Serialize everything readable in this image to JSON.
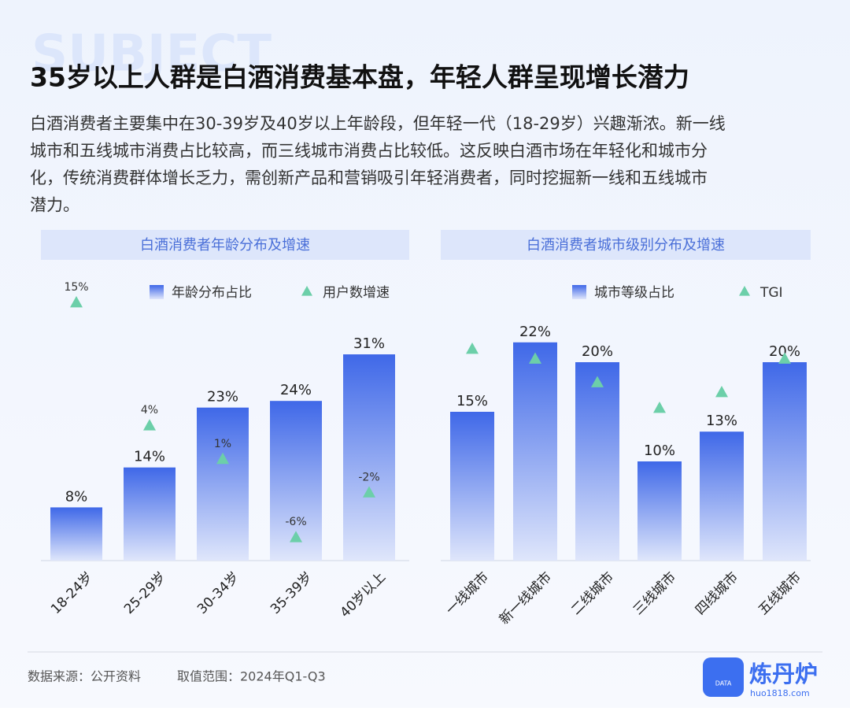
{
  "watermark": "SUBJECT",
  "title": "35岁以上人群是白酒消费基本盘，年轻人群呈现增长潜力",
  "description": [
    "白酒消费者主要集中在30-39岁及40岁以上年龄段，但年轻一代（18-29岁）兴趣渐浓。新一线",
    "城市和五线城市消费占比较高，而三线城市消费占比较低。这反映白酒市场在年轻化和城市分",
    "化，传统消费群体增长乏力，需创新产品和营销吸引年轻消费者，同时挖掘新一线和五线城市",
    "潜力。"
  ],
  "chart_data": [
    {
      "type": "bar",
      "title": "白酒消费者年龄分布及增速",
      "categories": [
        "18-24岁",
        "25-29岁",
        "30-34岁",
        "35-39岁",
        "40岁以上"
      ],
      "series": [
        {
          "name": "年龄分布占比",
          "color": "#3f68e8",
          "values": [
            8,
            14,
            23,
            24,
            31
          ],
          "value_labels": [
            "8%",
            "14%",
            "23%",
            "24%",
            "31%"
          ]
        },
        {
          "name": "用户数增速",
          "type": "marker",
          "color": "#6ccfa9",
          "values": [
            15,
            4,
            1,
            -6,
            -2
          ],
          "value_labels": [
            "15%",
            "4%",
            "1%",
            "-6%",
            "-2%"
          ]
        }
      ]
    },
    {
      "type": "bar",
      "title": "白酒消费者城市级别分布及增速",
      "categories": [
        "一线城市",
        "新一线城市",
        "二线城市",
        "三线城市",
        "四线城市",
        "五线城市"
      ],
      "series": [
        {
          "name": "城市等级占比",
          "color": "#3f68e8",
          "values": [
            15,
            22,
            20,
            10,
            13,
            20
          ],
          "value_labels": [
            "15%",
            "22%",
            "20%",
            "10%",
            "13%",
            "20%"
          ]
        },
        {
          "name": "TGI",
          "type": "marker",
          "color": "#6ccfa9",
          "values": [
            124,
            119,
            107,
            94,
            102,
            119
          ]
        }
      ]
    }
  ],
  "footer": {
    "source": "数据来源：公开资料",
    "range": "取值范围：2024年Q1-Q3"
  },
  "logo": {
    "name": "炼丹炉",
    "url": "huo1818.com",
    "badge": "DATA"
  }
}
